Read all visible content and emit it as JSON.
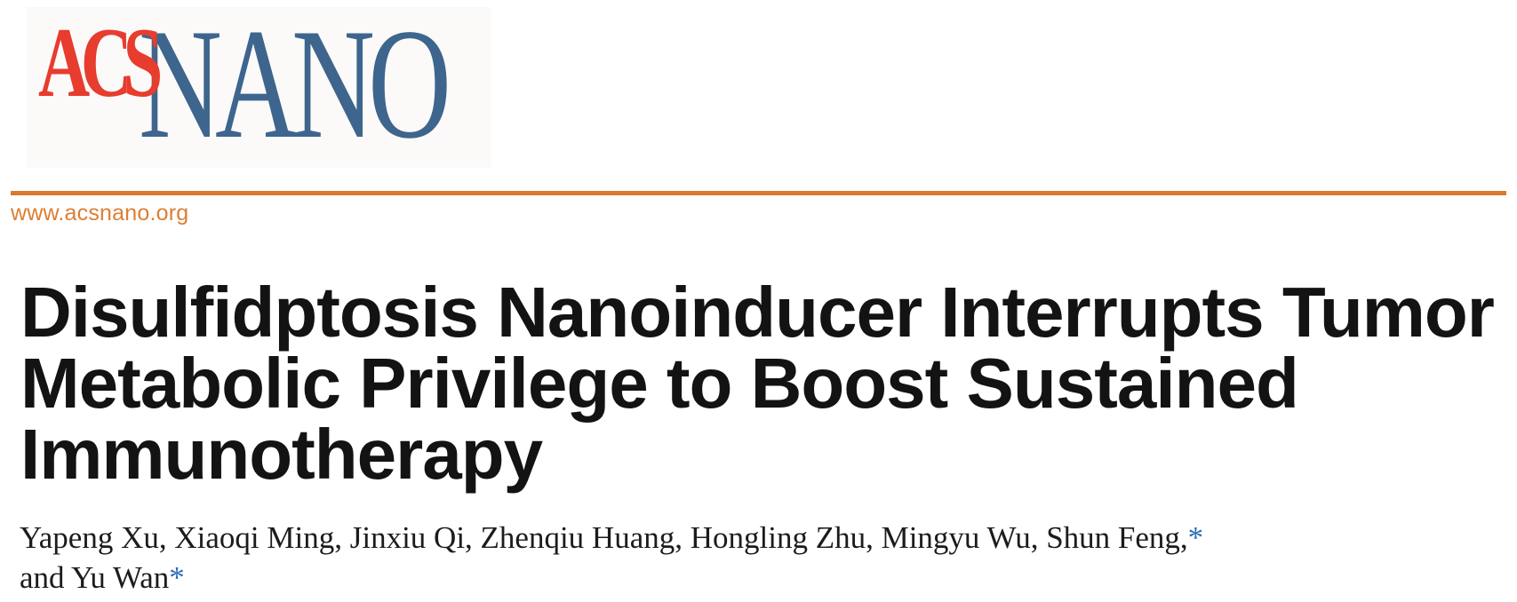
{
  "theme": {
    "acs_red": "#e73c2e",
    "nano_blue": "#3e658d",
    "rule_orange": "#d97b2d",
    "link_orange": "#dd7e31",
    "asterisk_blue": "#2e6cb5",
    "title_black": "#131313",
    "author_black": "#1c1c1c"
  },
  "masthead": {
    "logo": {
      "acs": "ACS",
      "nano": "NANO"
    },
    "website": "www.acsnano.org"
  },
  "article": {
    "title_lines": [
      "Disulfidptosis Nanoinducer Interrupts Tumor",
      "Metabolic Privilege to Boost Sustained",
      "Immunotherapy"
    ],
    "authors": {
      "line1": "Yapeng Xu, Xiaoqi Ming, Jinxiu Qi, Zhenqiu Huang, Hongling Zhu, Mingyu Wu, Shun Feng,",
      "line1_mark": "*",
      "line2": "and Yu Wan",
      "line2_mark": "*"
    }
  }
}
